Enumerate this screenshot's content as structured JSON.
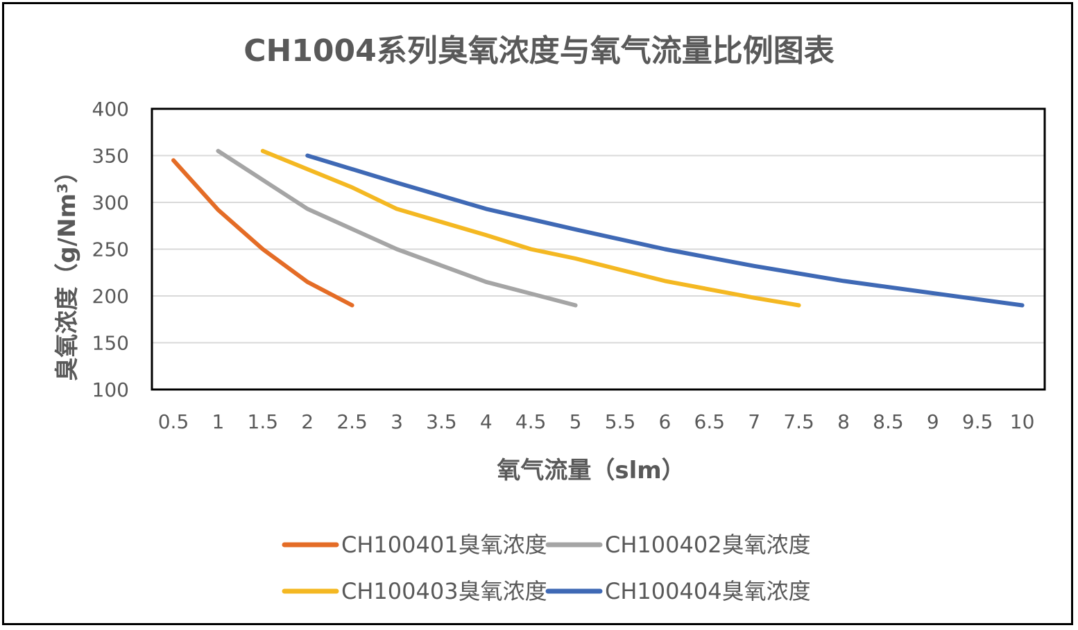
{
  "chart_data": {
    "type": "line",
    "title": "CH1004系列臭氧浓度与氧气流量比例图表",
    "xlabel": "氧气流量（slm）",
    "ylabel": "臭氧浓度（g/Nm³）",
    "x_ticks": [
      "0.5",
      "1",
      "1.5",
      "2",
      "2.5",
      "3",
      "3.5",
      "4",
      "4.5",
      "5",
      "5.5",
      "6",
      "6.5",
      "7",
      "7.5",
      "8",
      "8.5",
      "9",
      "9.5",
      "10"
    ],
    "y_ticks": [
      "100",
      "150",
      "200",
      "250",
      "300",
      "350",
      "400"
    ],
    "ylim": [
      100,
      400
    ],
    "grid": true,
    "legend_position": "bottom",
    "series": [
      {
        "name": "CH100401臭氧浓度",
        "color": "#E46C26",
        "x": [
          0.5,
          1,
          1.5,
          2,
          2.5
        ],
        "y": [
          345,
          292,
          250,
          215,
          190
        ]
      },
      {
        "name": "CH100402臭氧浓度",
        "color": "#A5A5A5",
        "x": [
          1,
          2,
          3,
          4,
          5
        ],
        "y": [
          355,
          293,
          250,
          215,
          190
        ]
      },
      {
        "name": "CH100403臭氧浓度",
        "color": "#F4B822",
        "x": [
          1.5,
          2.5,
          3,
          4,
          4.5,
          5,
          6,
          7,
          7.5
        ],
        "y": [
          355,
          316,
          293,
          265,
          250,
          240,
          216,
          198,
          190
        ]
      },
      {
        "name": "CH100404臭氧浓度",
        "color": "#3F69B5",
        "x": [
          2,
          3,
          4,
          5,
          6,
          7,
          8,
          9,
          10
        ],
        "y": [
          350,
          321,
          293,
          271,
          250,
          232,
          216,
          203,
          190
        ]
      }
    ]
  }
}
